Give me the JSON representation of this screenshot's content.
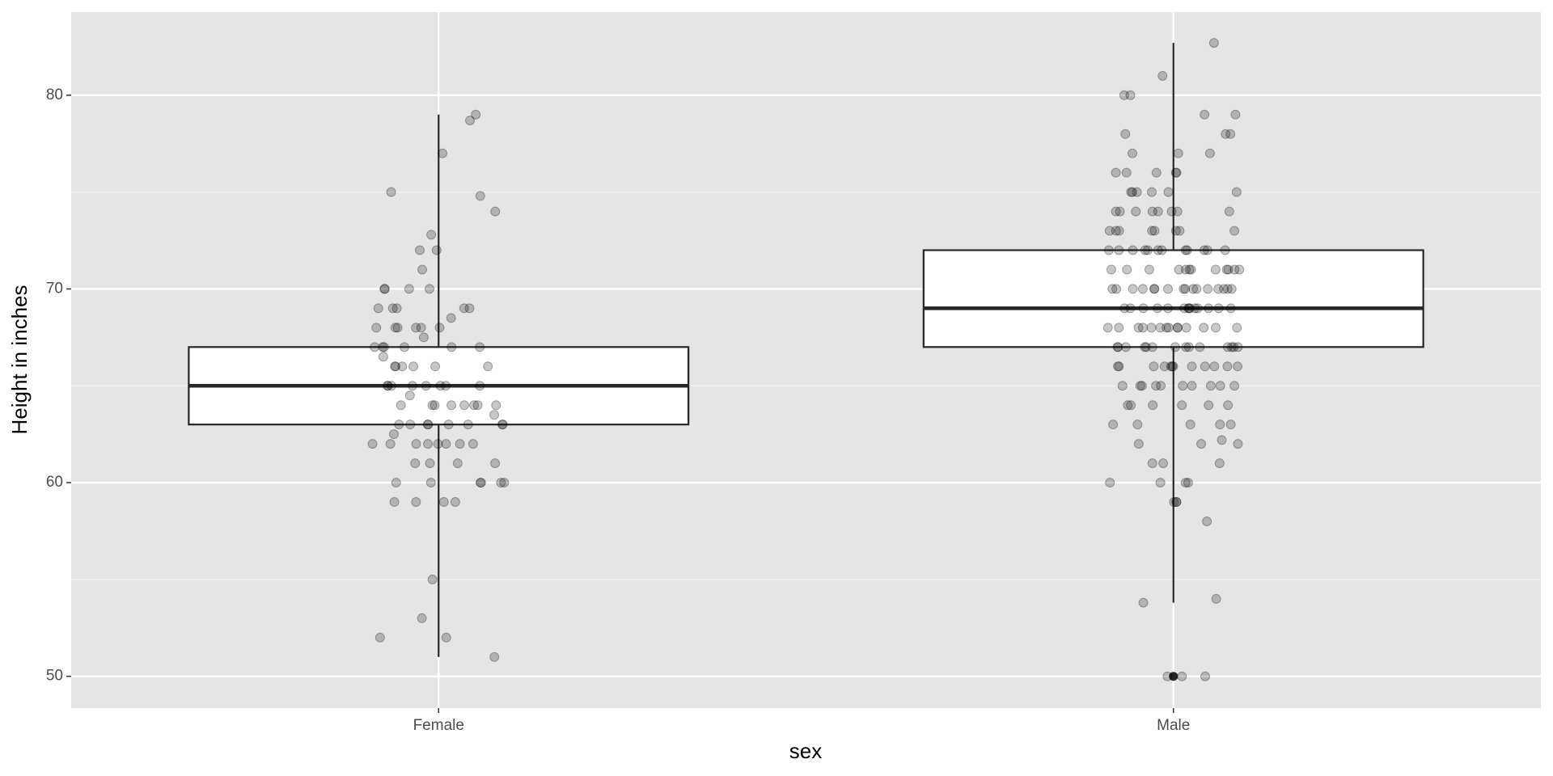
{
  "chart_data": {
    "type": "box",
    "x_label": "sex",
    "y_label": "Height in inches",
    "categories": [
      "Female",
      "Male"
    ],
    "boxes": [
      {
        "whislo": 51,
        "q1": 63,
        "med": 65,
        "q3": 67,
        "whishi": 79
      },
      {
        "whislo": 53.8,
        "q1": 67,
        "med": 69,
        "q3": 72,
        "whishi": 82.7,
        "outliers": [
          50
        ]
      }
    ],
    "points": [
      [
        51,
        52,
        52,
        53,
        55,
        59,
        59,
        59,
        59,
        60,
        60,
        60,
        60,
        60,
        60,
        61,
        61,
        61,
        61,
        62,
        62,
        62,
        62,
        62,
        62,
        62,
        62,
        62.5,
        63,
        63,
        63,
        63,
        63,
        63,
        63,
        63,
        63.5,
        64,
        64,
        64,
        64,
        64,
        64,
        64,
        64,
        64.5,
        65,
        65,
        65,
        65,
        65,
        65,
        65,
        65,
        66,
        66,
        66,
        66,
        66,
        66,
        66.5,
        67,
        67,
        67,
        67,
        67,
        67,
        67.5,
        68,
        68,
        68,
        68,
        68,
        68,
        68.5,
        69,
        69,
        69,
        69,
        69,
        70,
        70,
        70,
        70,
        71,
        72,
        72,
        72.8,
        74,
        74.8,
        75,
        77,
        78.7,
        79
      ],
      [
        50,
        50,
        50,
        53.8,
        54,
        58,
        59,
        59,
        59,
        60,
        60,
        60,
        60,
        61,
        61,
        61,
        62,
        62,
        62,
        62.2,
        63,
        63,
        63,
        63,
        63,
        64,
        64,
        64,
        64,
        64,
        64,
        65,
        65,
        65,
        65,
        65,
        65,
        65,
        65,
        65,
        65,
        66,
        66,
        66,
        66,
        66,
        66,
        66,
        66,
        66,
        66,
        66,
        66,
        67,
        67,
        67,
        67,
        67,
        67,
        67,
        67,
        67,
        67,
        67,
        67,
        67,
        67,
        68,
        68,
        68,
        68,
        68,
        68,
        68,
        68,
        68,
        68,
        68,
        68,
        68,
        68,
        69,
        69,
        69,
        69,
        69,
        69,
        69,
        69,
        69,
        69,
        69,
        69,
        69,
        69,
        70,
        70,
        70,
        70,
        70,
        70,
        70,
        70,
        70,
        70,
        70,
        70,
        70,
        70,
        70,
        70,
        71,
        71,
        71,
        71,
        71,
        71,
        71,
        71,
        71,
        71,
        71,
        71,
        72,
        72,
        72,
        72,
        72,
        72,
        72,
        72,
        72,
        72,
        72,
        72,
        73,
        73,
        73,
        73,
        73,
        73,
        73,
        73,
        74,
        74,
        74,
        74,
        74,
        74,
        74,
        74,
        75,
        75,
        75,
        75,
        75,
        75,
        76,
        76,
        76,
        76,
        76,
        77,
        77,
        77,
        78,
        78,
        78,
        79,
        79,
        80,
        80,
        81,
        82.7
      ]
    ],
    "point_color": "#000000",
    "box_fill": "#ffffff",
    "box_stroke": "#262626",
    "panel_color": "#e5e5e5",
    "grid": true,
    "ylim": [
      48.36,
      84.29
    ],
    "yticks": [
      50,
      60,
      70,
      80
    ]
  }
}
